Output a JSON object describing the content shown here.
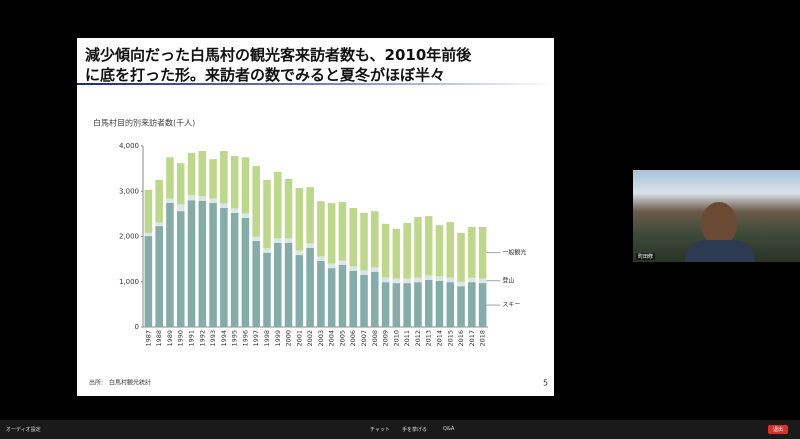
{
  "slide": {
    "title_lines": [
      "減少傾向だった白馬村の観光客来訪者数も、2010年前後",
      "に底を打った形。来訪者の数でみると夏冬がほぼ半々"
    ],
    "source": "出所:　白馬村観光統計",
    "page_number": 5
  },
  "chart_data": {
    "type": "stacked-bar",
    "y_label": "白馬村目的別来訪者数(千人)",
    "categories": [
      "1987",
      "1988",
      "1989",
      "1990",
      "1991",
      "1992",
      "1993",
      "1994",
      "1995",
      "1996",
      "1997",
      "1998",
      "1999",
      "2000",
      "2001",
      "2002",
      "2003",
      "2004",
      "2005",
      "2006",
      "2007",
      "2008",
      "2009",
      "2010",
      "2011",
      "2012",
      "2013",
      "2014",
      "2015",
      "2016",
      "2017",
      "2018"
    ],
    "series": [
      {
        "name": "スキー",
        "color": "#84aca9",
        "values": [
          2010,
          2230,
          2740,
          2560,
          2800,
          2790,
          2740,
          2630,
          2520,
          2410,
          1900,
          1640,
          1860,
          1860,
          1590,
          1750,
          1460,
          1300,
          1370,
          1240,
          1150,
          1220,
          990,
          970,
          970,
          990,
          1040,
          1020,
          990,
          900,
          990,
          970
        ]
      },
      {
        "name": "登山",
        "color": "#d9e7e3",
        "values": [
          70,
          80,
          100,
          150,
          120,
          100,
          100,
          100,
          100,
          100,
          100,
          100,
          100,
          100,
          100,
          100,
          100,
          100,
          100,
          100,
          100,
          100,
          100,
          100,
          100,
          100,
          100,
          100,
          100,
          100,
          100,
          100
        ]
      },
      {
        "name": "一般観光",
        "color": "#bdd88a",
        "values": [
          950,
          940,
          910,
          910,
          930,
          1000,
          870,
          1160,
          1160,
          1240,
          1560,
          1510,
          1470,
          1310,
          1380,
          1240,
          1220,
          1340,
          1290,
          1290,
          1270,
          1240,
          1190,
          1100,
          1230,
          1340,
          1310,
          1130,
          1230,
          1080,
          1120,
          1140
        ]
      }
    ],
    "ylim": [
      0,
      4000
    ],
    "yticks": [
      0,
      {
        "value": 1000,
        "label": "1,000"
      },
      {
        "value": 2000,
        "label": "2,000"
      },
      {
        "value": 3000,
        "label": "3,000"
      },
      {
        "value": 4000,
        "label": "4,000"
      }
    ]
  },
  "video": {
    "name": "町田修"
  },
  "toolbar": {
    "audio": "オーディオ設定",
    "chat": "チャット",
    "raise_hand": "手を挙げる",
    "qa": "Q&A",
    "leave": "退出"
  }
}
